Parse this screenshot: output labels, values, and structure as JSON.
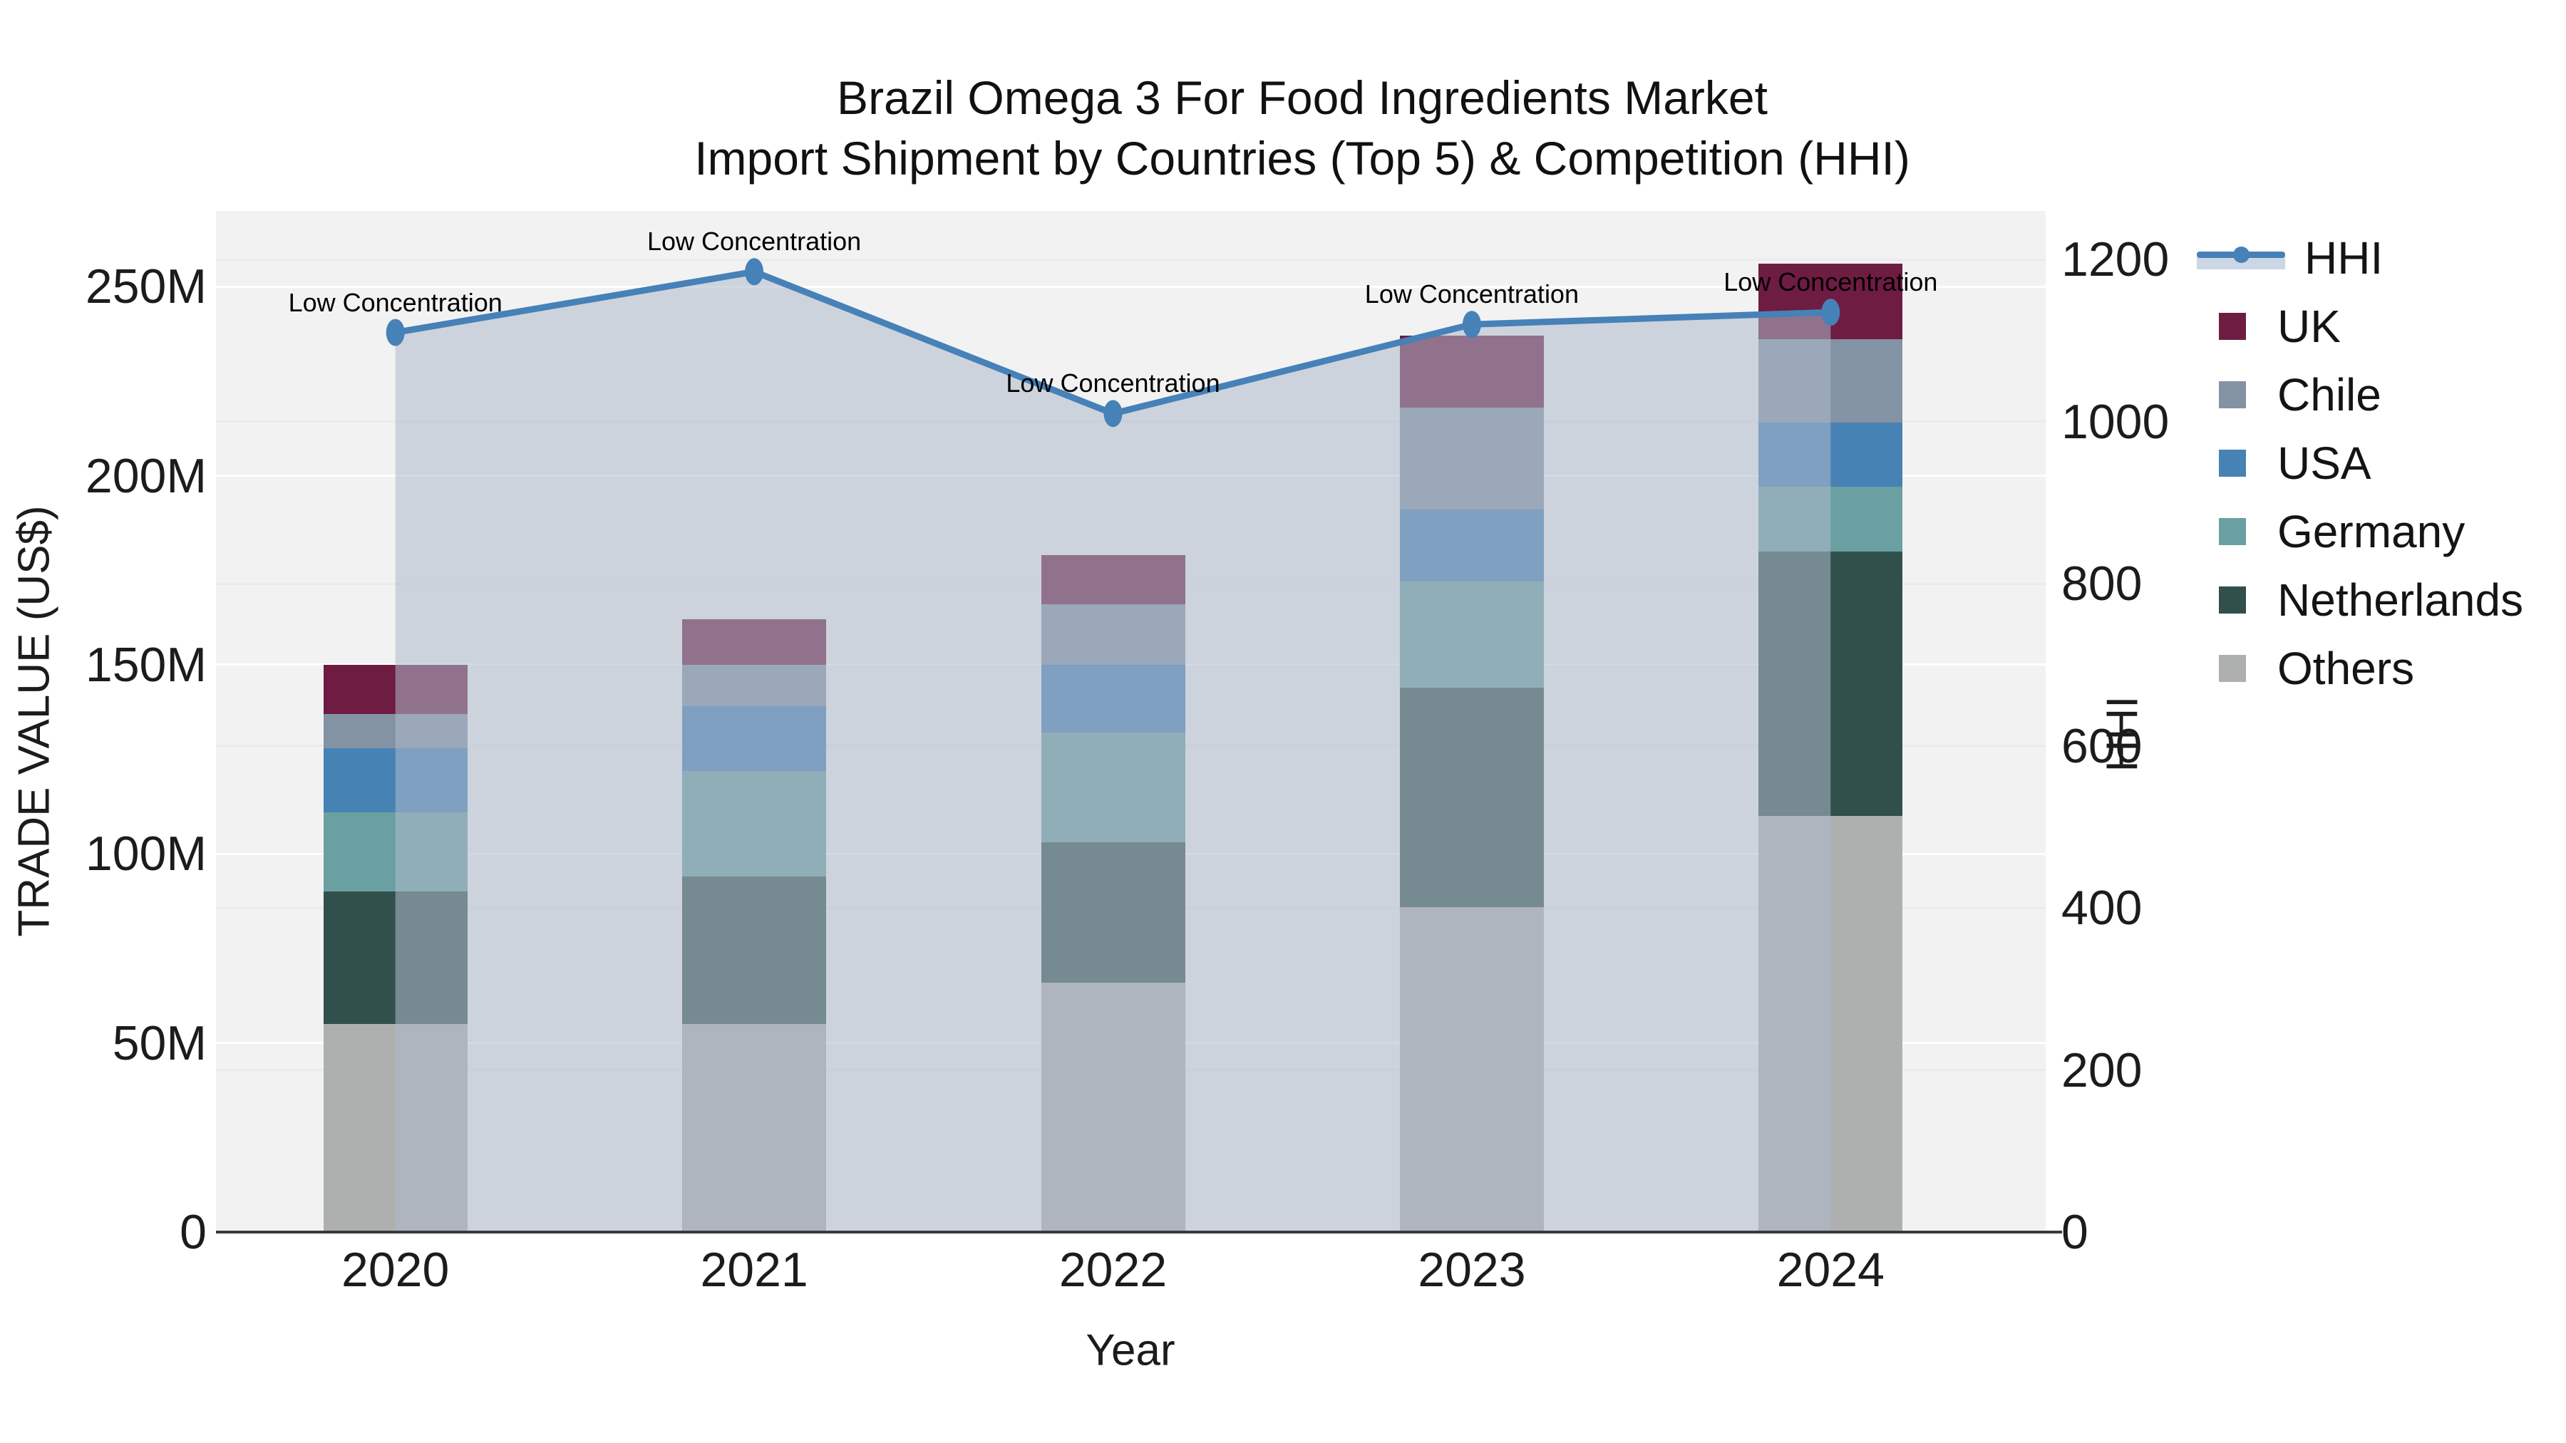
{
  "title_line1": "Brazil Omega 3 For Food Ingredients Market",
  "title_line2": "Import Shipment by Countries (Top 5) & Competition (HHI)",
  "chart_data": {
    "type": "bar",
    "subtype": "stacked-bars-with-line-overlay-and-area-fill",
    "title": "Brazil Omega 3 For Food Ingredients Market Import Shipment by Countries (Top 5) & Competition (HHI)",
    "categories": [
      "2020",
      "2021",
      "2022",
      "2023",
      "2024"
    ],
    "bar_unit": "M US$",
    "series": [
      {
        "name": "Others",
        "color": "#aeb0af",
        "values": [
          55,
          55,
          66,
          86,
          110
        ]
      },
      {
        "name": "Netherlands",
        "color": "#31504c",
        "values": [
          35,
          39,
          37,
          58,
          70
        ]
      },
      {
        "name": "Germany",
        "color": "#6aa0a1",
        "values": [
          21,
          28,
          29,
          28,
          17
        ]
      },
      {
        "name": "USA",
        "color": "#4682b4",
        "values": [
          17,
          17,
          18,
          19,
          17
        ]
      },
      {
        "name": "Chile",
        "color": "#8393a4",
        "values": [
          9,
          11,
          16,
          27,
          22
        ]
      },
      {
        "name": "UK",
        "color": "#6e1c42",
        "values": [
          13,
          12,
          13,
          19,
          20
        ]
      }
    ],
    "bar_totals": [
      150,
      162,
      179,
      237,
      256
    ],
    "line_series": {
      "name": "HHI",
      "color": "#4681b8",
      "axis": "right",
      "values": [
        1110,
        1185,
        1010,
        1120,
        1135
      ],
      "area_fill": "rgba(174,185,203,0.55)"
    },
    "annotations": [
      {
        "text": "Low Concentration",
        "category": "2020"
      },
      {
        "text": "Low Concentration",
        "category": "2021"
      },
      {
        "text": "Low Concentration",
        "category": "2022"
      },
      {
        "text": "Low Concentration",
        "category": "2023"
      },
      {
        "text": "Low Concentration",
        "category": "2024"
      }
    ],
    "axes": {
      "left": {
        "title": "TRADE VALUE (US$)",
        "tick_values": [
          0,
          50,
          100,
          150,
          200,
          250
        ],
        "tick_labels": [
          "0",
          "50M",
          "100M",
          "150M",
          "200M",
          "250M"
        ],
        "max": 270
      },
      "right": {
        "title": "HHI",
        "tick_values": [
          0,
          200,
          400,
          600,
          800,
          1000,
          1200
        ],
        "tick_labels": [
          "0",
          "200",
          "400",
          "600",
          "800",
          "1000",
          "1200"
        ],
        "max": 1260
      },
      "x": {
        "title": "Year"
      }
    },
    "legend_order": [
      "HHI",
      "UK",
      "Chile",
      "USA",
      "Germany",
      "Netherlands",
      "Others"
    ],
    "style": {
      "plot_background": "#f2f2f2",
      "grid_color": "#ffffff",
      "axis_line_color": "#3a3a3a",
      "text_color": "#1a1a1a"
    },
    "layout_hints": {
      "grid": "on",
      "legend_position": "right",
      "bars_muted_under_area_fill": true
    }
  }
}
